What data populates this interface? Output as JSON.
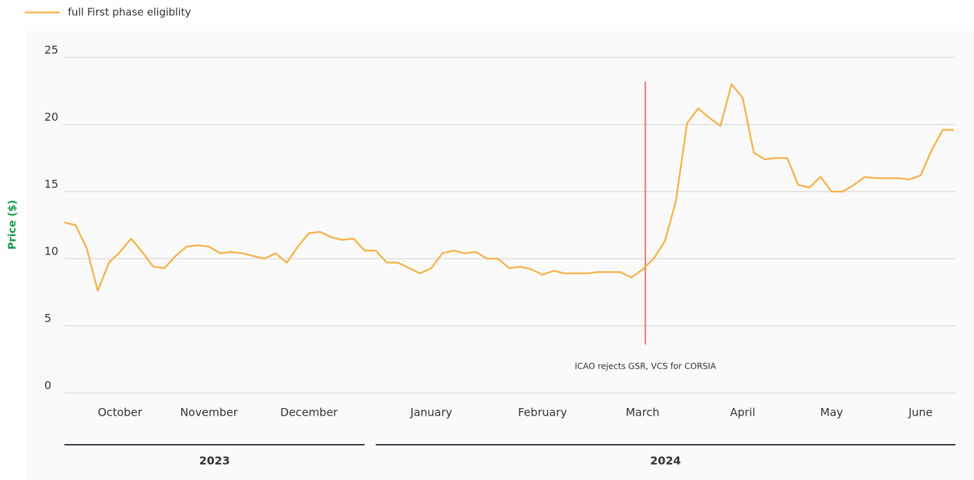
{
  "chart_data": {
    "type": "line",
    "y_label": "Price ($)",
    "categories": [
      null,
      null,
      null,
      null,
      null,
      "October",
      null,
      null,
      null,
      null,
      null,
      null,
      null,
      "November",
      null,
      null,
      null,
      null,
      null,
      null,
      null,
      null,
      "December",
      null,
      null,
      null,
      null,
      null,
      null,
      null,
      null,
      null,
      null,
      "January",
      null,
      null,
      null,
      null,
      null,
      null,
      null,
      null,
      null,
      "February",
      null,
      null,
      null,
      null,
      null,
      null,
      null,
      null,
      "March",
      null,
      null,
      null,
      null,
      null,
      null,
      null,
      null,
      "April",
      null,
      null,
      null,
      null,
      null,
      null,
      null,
      "May",
      null,
      null,
      null,
      null,
      null,
      null,
      null,
      "June",
      null,
      null,
      null
    ],
    "series": [
      {
        "name": "full First phase eligiblity",
        "color": "#f6b24b",
        "values": [
          12.7,
          12.5,
          10.8,
          7.6,
          9.7,
          10.5,
          11.5,
          10.5,
          9.4,
          9.3,
          10.2,
          10.9,
          11.0,
          10.9,
          10.4,
          10.5,
          10.4,
          10.2,
          10.0,
          10.4,
          9.7,
          10.9,
          11.9,
          12.0,
          11.6,
          11.4,
          11.5,
          10.6,
          10.6,
          9.7,
          9.7,
          9.3,
          8.9,
          9.3,
          10.4,
          10.6,
          10.4,
          10.5,
          10.0,
          10.0,
          9.3,
          9.4,
          9.2,
          8.8,
          9.1,
          8.9,
          8.9,
          8.9,
          9.0,
          9.0,
          9.0,
          8.6,
          9.2,
          10.0,
          11.3,
          14.3,
          20.1,
          21.2,
          20.5,
          19.9,
          23.0,
          22.0,
          17.9,
          17.4,
          17.5,
          17.5,
          15.5,
          15.3,
          16.1,
          15.0,
          15.0,
          15.5,
          16.1,
          16.0,
          16.0,
          16.0,
          15.9,
          16.2,
          18.1,
          19.6,
          19.6
        ]
      }
    ],
    "ylim": [
      0,
      25
    ],
    "yticks": [
      0,
      5,
      10,
      15,
      20,
      25
    ],
    "grid": true,
    "legend": "top-left",
    "annotation": {
      "label": "ICAO rejects GSR, VCS for CORSIA",
      "at": "March",
      "y_range": [
        3.6,
        23.2
      ],
      "color": "#ec6f66"
    },
    "year_groups": [
      {
        "label": "2023",
        "months": [
          "October",
          "November",
          "December"
        ]
      },
      {
        "label": "2024",
        "months": [
          "January",
          "February",
          "March",
          "April",
          "May",
          "June"
        ]
      }
    ]
  }
}
